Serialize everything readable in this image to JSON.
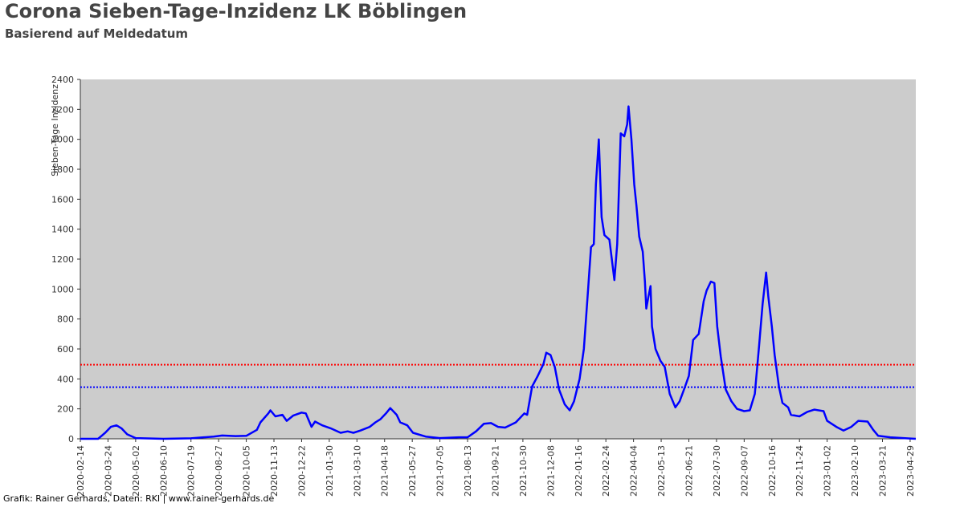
{
  "chart_data": {
    "type": "line",
    "title": "Corona Sieben-Tage-Inzidenz LK Böblingen",
    "subtitle": "Basierend auf Meldedatum",
    "y_label": "Sieben-Tage Inzidenz",
    "footer": "Grafik: Rainer Gerhards, Daten: RKI | www.rainer-gerhards.de",
    "color": "#0000ff",
    "x": [
      "2020-02-14",
      "2020-03-10",
      "2020-03-20",
      "2020-03-28",
      "2020-04-05",
      "2020-04-12",
      "2020-04-20",
      "2020-05-02",
      "2020-06-10",
      "2020-07-19",
      "2020-08-20",
      "2020-09-01",
      "2020-09-20",
      "2020-10-05",
      "2020-10-20",
      "2020-10-25",
      "2020-11-05",
      "2020-11-08",
      "2020-11-15",
      "2020-11-25",
      "2020-12-01",
      "2020-12-10",
      "2020-12-22",
      "2020-12-28",
      "2021-01-05",
      "2021-01-10",
      "2021-01-20",
      "2021-02-01",
      "2021-02-15",
      "2021-02-25",
      "2021-03-05",
      "2021-03-15",
      "2021-03-28",
      "2021-04-05",
      "2021-04-12",
      "2021-04-20",
      "2021-04-26",
      "2021-05-05",
      "2021-05-10",
      "2021-05-20",
      "2021-05-28",
      "2021-06-15",
      "2021-07-05",
      "2021-08-01",
      "2021-08-13",
      "2021-08-25",
      "2021-09-05",
      "2021-09-15",
      "2021-09-25",
      "2021-10-05",
      "2021-10-20",
      "2021-11-01",
      "2021-11-05",
      "2021-11-12",
      "2021-11-20",
      "2021-11-28",
      "2021-12-02",
      "2021-12-08",
      "2021-12-14",
      "2021-12-20",
      "2021-12-28",
      "2022-01-04",
      "2022-01-10",
      "2022-01-18",
      "2022-01-24",
      "2022-01-30",
      "2022-02-03",
      "2022-02-07",
      "2022-02-10",
      "2022-02-14",
      "2022-02-18",
      "2022-02-22",
      "2022-03-01",
      "2022-03-08",
      "2022-03-12",
      "2022-03-17",
      "2022-03-22",
      "2022-03-26",
      "2022-03-28",
      "2022-04-01",
      "2022-04-05",
      "2022-04-08",
      "2022-04-12",
      "2022-04-17",
      "2022-04-20",
      "2022-04-22",
      "2022-04-25",
      "2022-04-28",
      "2022-04-30",
      "2022-05-05",
      "2022-05-12",
      "2022-05-18",
      "2022-05-25",
      "2022-06-02",
      "2022-06-08",
      "2022-06-15",
      "2022-06-21",
      "2022-06-27",
      "2022-07-05",
      "2022-07-12",
      "2022-07-16",
      "2022-07-22",
      "2022-07-27",
      "2022-07-31",
      "2022-08-05",
      "2022-08-12",
      "2022-08-20",
      "2022-08-28",
      "2022-09-07",
      "2022-09-15",
      "2022-09-22",
      "2022-09-28",
      "2022-10-03",
      "2022-10-08",
      "2022-10-11",
      "2022-10-16",
      "2022-10-20",
      "2022-10-26",
      "2022-10-31",
      "2022-11-08",
      "2022-11-12",
      "2022-11-24",
      "2022-12-05",
      "2022-12-15",
      "2022-12-28",
      "2023-01-02",
      "2023-01-15",
      "2023-01-25",
      "2023-02-05",
      "2023-02-15",
      "2023-02-28",
      "2023-03-08",
      "2023-03-15",
      "2023-04-01",
      "2023-04-29",
      "2023-05-07"
    ],
    "values": [
      0,
      0,
      40,
      80,
      90,
      70,
      30,
      5,
      0,
      3,
      15,
      22,
      18,
      20,
      60,
      110,
      170,
      190,
      150,
      160,
      120,
      155,
      175,
      170,
      80,
      115,
      90,
      70,
      40,
      50,
      40,
      55,
      80,
      110,
      130,
      170,
      205,
      160,
      110,
      90,
      40,
      15,
      5,
      10,
      10,
      50,
      100,
      105,
      80,
      75,
      110,
      170,
      160,
      350,
      420,
      500,
      575,
      560,
      480,
      330,
      230,
      190,
      250,
      400,
      600,
      1000,
      1280,
      1300,
      1700,
      2000,
      1480,
      1360,
      1330,
      1060,
      1300,
      2040,
      2020,
      2100,
      2220,
      2000,
      1700,
      1560,
      1350,
      1250,
      1050,
      870,
      950,
      1020,
      750,
      600,
      520,
      480,
      300,
      210,
      250,
      340,
      420,
      660,
      700,
      920,
      990,
      1050,
      1040,
      750,
      550,
      330,
      250,
      200,
      185,
      190,
      300,
      620,
      900,
      1110,
      950,
      750,
      560,
      350,
      240,
      210,
      160,
      150,
      180,
      195,
      185,
      120,
      80,
      55,
      80,
      120,
      115,
      60,
      20,
      10,
      2,
      0
    ],
    "reference_lines": [
      {
        "value": 495,
        "color": "#ff0000"
      },
      {
        "value": 345,
        "color": "#0000ff"
      }
    ],
    "xlim": [
      "2020-02-14",
      "2023-05-07"
    ],
    "xticks": [
      "2020-02-14",
      "2020-03-24",
      "2020-05-02",
      "2020-06-10",
      "2020-07-19",
      "2020-08-27",
      "2020-10-05",
      "2020-11-13",
      "2020-12-22",
      "2021-01-30",
      "2021-03-10",
      "2021-04-18",
      "2021-05-27",
      "2021-07-05",
      "2021-08-13",
      "2021-09-21",
      "2021-10-30",
      "2021-12-08",
      "2022-01-16",
      "2022-02-24",
      "2022-04-04",
      "2022-05-13",
      "2022-06-21",
      "2022-07-30",
      "2022-09-07",
      "2022-10-16",
      "2022-11-24",
      "2023-01-02",
      "2023-02-10",
      "2023-03-21",
      "2023-04-29"
    ],
    "ylim": [
      0,
      2400
    ],
    "yticks": [
      0,
      200,
      400,
      600,
      800,
      1000,
      1200,
      1400,
      1600,
      1800,
      2000,
      2200,
      2400
    ],
    "plot_background": "#cccccc"
  }
}
